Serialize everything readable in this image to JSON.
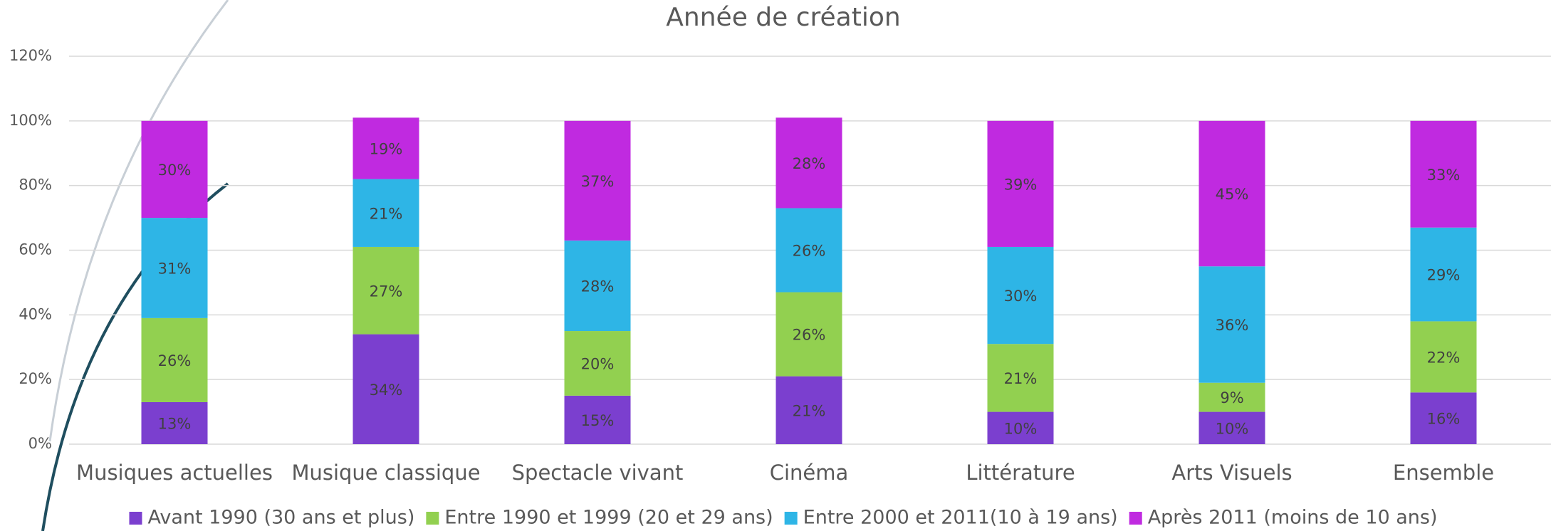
{
  "chart_data": {
    "type": "stacked_bar",
    "title": "Année de création",
    "categories": [
      "Musiques actuelles",
      "Musique classique",
      "Spectacle vivant",
      "Cinéma",
      "Littérature",
      "Arts Visuels",
      "Ensemble"
    ],
    "series": [
      {
        "name": "Avant 1990 (30 ans et plus)",
        "color": "#7b3fcf",
        "values": [
          13,
          34,
          15,
          21,
          10,
          10,
          16
        ],
        "value_labels": [
          "13%",
          "34%",
          "15%",
          "21%",
          "10%",
          "10%",
          "16%"
        ]
      },
      {
        "name": "Entre 1990 et 1999 (20 et 29 ans)",
        "color": "#92d050",
        "values": [
          26,
          27,
          20,
          26,
          21,
          9,
          22
        ],
        "value_labels": [
          "26%",
          "27%",
          "20%",
          "26%",
          "21%",
          "9%",
          "22%"
        ]
      },
      {
        "name": "Entre 2000 et 2011(10 à 19 ans)",
        "color": "#2eb5e6",
        "values": [
          31,
          21,
          28,
          26,
          30,
          36,
          29
        ],
        "value_labels": [
          "31%",
          "21%",
          "28%",
          "26%",
          "30%",
          "36%",
          "29%"
        ]
      },
      {
        "name": "Après 2011 (moins de 10 ans)",
        "color": "#c02ae0",
        "values": [
          30,
          19,
          37,
          28,
          39,
          45,
          33
        ],
        "value_labels": [
          "30%",
          "19%",
          "37%",
          "28%",
          "39%",
          "45%",
          "33%"
        ]
      }
    ],
    "ylim": [
      0,
      120
    ],
    "yticks": [
      {
        "value": 0,
        "label": "0%"
      },
      {
        "value": 20,
        "label": "20%"
      },
      {
        "value": 40,
        "label": "40%"
      },
      {
        "value": 60,
        "label": "60%"
      },
      {
        "value": 80,
        "label": "80%"
      },
      {
        "value": 100,
        "label": "100%"
      },
      {
        "value": 120,
        "label": "120%"
      }
    ],
    "grid": true,
    "legend": "bottom"
  }
}
